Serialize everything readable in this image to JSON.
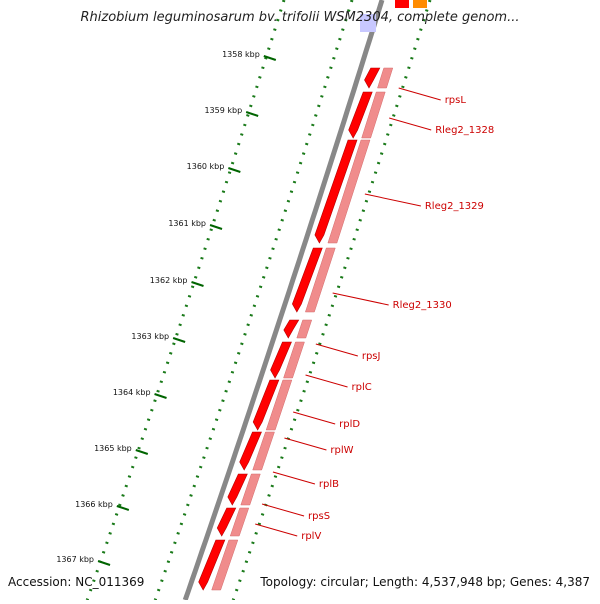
{
  "title": "Rhizobium leguminosarum bv. trifolii WSM2304, complete genom...",
  "accession": "Accession: NC_011369",
  "topology": "Topology: circular; Length: 4,537,948 bp; Genes: 4,387",
  "colors": {
    "gene": "#ff0000",
    "gene_light": "#f08c8c",
    "label": "#cc0000",
    "tick_major": "#006400",
    "tick_minor": "#1a7a1a",
    "backbone": "#888888",
    "highlight": "#c8c8ff",
    "other_feature": "#ff8c00"
  },
  "ruler": [
    {
      "label": "1358 kbp"
    },
    {
      "label": "1359 kbp"
    },
    {
      "label": "1360 kbp"
    },
    {
      "label": "1361 kbp"
    },
    {
      "label": "1362 kbp"
    },
    {
      "label": "1363 kbp"
    },
    {
      "label": "1364 kbp"
    },
    {
      "label": "1365 kbp"
    },
    {
      "label": "1366 kbp"
    },
    {
      "label": "1367 kbp"
    }
  ],
  "genes": [
    {
      "name": "rpsL"
    },
    {
      "name": "Rleg2_1328"
    },
    {
      "name": "Rleg2_1329"
    },
    {
      "name": "Rleg2_1330"
    },
    {
      "name": "rpsJ"
    },
    {
      "name": "rplC"
    },
    {
      "name": "rplD"
    },
    {
      "name": "rplW"
    },
    {
      "name": "rplB"
    },
    {
      "name": "rpsS"
    },
    {
      "name": "rplV"
    }
  ]
}
